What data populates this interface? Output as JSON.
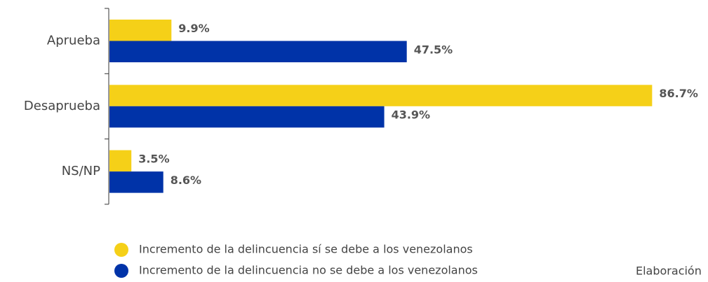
{
  "chart_data": {
    "type": "bar",
    "orientation": "horizontal",
    "categories": [
      "Aprueba",
      "Desaprueba",
      "NS/NP"
    ],
    "series": [
      {
        "name": "Incremento de la delincuencia sí se debe a los venezolanos",
        "color": "#f5d018",
        "values": [
          9.9,
          86.7,
          3.5
        ],
        "value_labels": [
          "9.9%",
          "86.7%",
          "3.5%"
        ]
      },
      {
        "name": "Incremento de la delincuencia no se debe a los venezolanos",
        "color": "#0033a8",
        "values": [
          47.5,
          43.9,
          8.6
        ],
        "value_labels": [
          "47.5%",
          "43.9%",
          "8.6%"
        ]
      }
    ],
    "annotation": "Elaboración"
  }
}
